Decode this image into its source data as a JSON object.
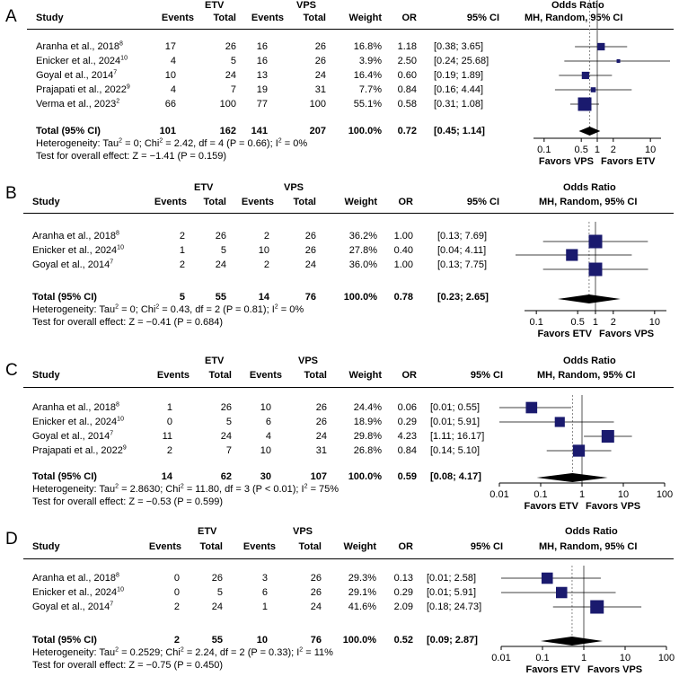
{
  "chart_data": [
    {
      "type": "forest",
      "panel": "A",
      "header": {
        "study": "Study",
        "group1": "ETV",
        "group2": "VPS",
        "events": "Events",
        "total": "Total",
        "weight": "Weight",
        "or": "OR",
        "ci": "95% CI",
        "or_title": "Odds Ratio",
        "method": "MH, Random, 95% CI"
      },
      "studies": [
        {
          "name": "Aranha et al., 2018",
          "ref": "8",
          "e1": "17",
          "n1": "26",
          "e2": "16",
          "n2": "26",
          "weight": "16.8%",
          "or_text": "1.18",
          "ci_text": "[0.38; 3.65]",
          "or": 1.18,
          "lo": 0.38,
          "hi": 3.65,
          "w": 16.8
        },
        {
          "name": "Enicker et al., 2024",
          "ref": "10",
          "e1": "4",
          "n1": "5",
          "e2": "16",
          "n2": "26",
          "weight": "3.9%",
          "or_text": "2.50",
          "ci_text": "[0.24; 25.68]",
          "or": 2.5,
          "lo": 0.24,
          "hi": 25.68,
          "w": 3.9
        },
        {
          "name": "Goyal et al., 2014",
          "ref": "7",
          "e1": "10",
          "n1": "24",
          "e2": "13",
          "n2": "24",
          "weight": "16.4%",
          "or_text": "0.60",
          "ci_text": "[0.19; 1.89]",
          "or": 0.6,
          "lo": 0.19,
          "hi": 1.89,
          "w": 16.4
        },
        {
          "name": "Prajapati et al., 2022",
          "ref": "9",
          "e1": "4",
          "n1": "7",
          "e2": "19",
          "n2": "31",
          "weight": "7.7%",
          "or_text": "0.84",
          "ci_text": "[0.16; 4.44]",
          "or": 0.84,
          "lo": 0.16,
          "hi": 4.44,
          "w": 7.7
        },
        {
          "name": "Verma et al., 2023",
          "ref": "2",
          "e1": "66",
          "n1": "100",
          "e2": "77",
          "n2": "100",
          "weight": "55.1%",
          "or_text": "0.58",
          "ci_text": "[0.31; 1.08]",
          "or": 0.58,
          "lo": 0.31,
          "hi": 1.08,
          "w": 55.1
        }
      ],
      "total": {
        "label": "Total (95% CI)",
        "e1": "101",
        "n1": "162",
        "e2": "141",
        "n2": "207",
        "weight": "100.0%",
        "or_text": "0.72",
        "ci_text": "[0.45; 1.14]",
        "or": 0.72,
        "lo": 0.45,
        "hi": 1.14
      },
      "heterogeneity": {
        "pre": "Heterogeneity: Tau",
        "tau2": "= 0; Chi",
        "chi2": "= 2.42, df = 4 (P = 0.66); I",
        "i2": "= 0%"
      },
      "overall_effect": "Test for overall effect: Z = −1.41 (P = 0.159)",
      "axis": {
        "ticks": [
          0.1,
          0.5,
          1,
          2,
          10
        ],
        "tick_labels": [
          "0.1",
          "0.5",
          "1",
          "2",
          "10"
        ],
        "xlim": [
          0.0631,
          15.85
        ],
        "scale": "log"
      },
      "favors": {
        "left": "Favors VPS",
        "right": "Favors ETV"
      }
    },
    {
      "type": "forest",
      "panel": "B",
      "header": {
        "study": "Study",
        "group1": "ETV",
        "group2": "VPS",
        "events": "Events",
        "total": "Total",
        "weight": "Weight",
        "or": "OR",
        "ci": "95% CI",
        "or_title": "Odds Ratio",
        "method": "MH, Random, 95% CI"
      },
      "studies": [
        {
          "name": "Aranha et al., 2018",
          "ref": "8",
          "e1": "2",
          "n1": "26",
          "e2": "2",
          "n2": "26",
          "weight": "36.2%",
          "or_text": "1.00",
          "ci_text": "[0.13; 7.69]",
          "or": 1.0,
          "lo": 0.13,
          "hi": 7.69,
          "w": 36.2
        },
        {
          "name": "Enicker et al., 2024",
          "ref": "10",
          "e1": "1",
          "n1": "5",
          "e2": "10",
          "n2": "26",
          "weight": "27.8%",
          "or_text": "0.40",
          "ci_text": "[0.04; 4.11]",
          "or": 0.4,
          "lo": 0.04,
          "hi": 4.11,
          "w": 27.8
        },
        {
          "name": "Goyal et al., 2014",
          "ref": "7",
          "e1": "2",
          "n1": "24",
          "e2": "2",
          "n2": "24",
          "weight": "36.0%",
          "or_text": "1.00",
          "ci_text": "[0.13; 7.75]",
          "or": 1.0,
          "lo": 0.13,
          "hi": 7.75,
          "w": 36.0
        }
      ],
      "total": {
        "label": "Total (95% CI)",
        "e1": "5",
        "n1": "55",
        "e2": "14",
        "n2": "76",
        "weight": "100.0%",
        "or_text": "0.78",
        "ci_text": "[0.23; 2.65]",
        "or": 0.78,
        "lo": 0.23,
        "hi": 2.65
      },
      "heterogeneity": {
        "pre": "Heterogeneity: Tau",
        "tau2": "= 0; Chi",
        "chi2": "= 0.43, df = 2 (P = 0.81); I",
        "i2": "= 0%"
      },
      "overall_effect": "Test for overall effect: Z = −0.41 (P = 0.684)",
      "axis": {
        "ticks": [
          0.1,
          0.5,
          1,
          2,
          10
        ],
        "tick_labels": [
          "0.1",
          "0.5",
          "1",
          "2",
          "10"
        ],
        "xlim": [
          0.0631,
          15.85
        ],
        "scale": "log"
      },
      "favors": {
        "left": "Favors ETV",
        "right": "Favors VPS"
      }
    },
    {
      "type": "forest",
      "panel": "C",
      "header": {
        "study": "Study",
        "group1": "ETV",
        "group2": "VPS",
        "events": "Events",
        "total": "Total",
        "weight": "Weight",
        "or": "OR",
        "ci": "95% CI",
        "or_title": "Odds Ratio",
        "method": "MH, Random, 95% CI"
      },
      "studies": [
        {
          "name": "Aranha et al., 2018",
          "ref": "8",
          "e1": "1",
          "n1": "26",
          "e2": "10",
          "n2": "26",
          "weight": "24.4%",
          "or_text": "0.06",
          "ci_text": "[0.01; 0.55]",
          "or": 0.06,
          "lo": 0.01,
          "hi": 0.55,
          "w": 24.4
        },
        {
          "name": "Enicker et al., 2024",
          "ref": "10",
          "e1": "0",
          "n1": "5",
          "e2": "6",
          "n2": "26",
          "weight": "18.9%",
          "or_text": "0.29",
          "ci_text": "[0.01; 5.91]",
          "or": 0.29,
          "lo": 0.01,
          "hi": 5.91,
          "w": 18.9
        },
        {
          "name": "Goyal et al., 2014",
          "ref": "7",
          "e1": "11",
          "n1": "24",
          "e2": "4",
          "n2": "24",
          "weight": "29.8%",
          "or_text": "4.23",
          "ci_text": "[1.11; 16.17]",
          "or": 4.23,
          "lo": 1.11,
          "hi": 16.17,
          "w": 29.8
        },
        {
          "name": "Prajapati et al., 2022",
          "ref": "9",
          "e1": "2",
          "n1": "7",
          "e2": "10",
          "n2": "31",
          "weight": "26.8%",
          "or_text": "0.84",
          "ci_text": "[0.14; 5.10]",
          "or": 0.84,
          "lo": 0.14,
          "hi": 5.1,
          "w": 26.8
        }
      ],
      "total": {
        "label": "Total (95% CI)",
        "e1": "14",
        "n1": "62",
        "e2": "30",
        "n2": "107",
        "weight": "100.0%",
        "or_text": "0.59",
        "ci_text": "[0.08; 4.17]",
        "or": 0.59,
        "lo": 0.08,
        "hi": 4.17
      },
      "heterogeneity": {
        "pre": "Heterogeneity: Tau",
        "tau2": "= 2.8630; Chi",
        "chi2": "= 11.80, df = 3 (P < 0.01); I",
        "i2": "= 75%"
      },
      "overall_effect": "Test for overall effect: Z = −0.53 (P = 0.599)",
      "axis": {
        "ticks": [
          0.01,
          0.1,
          1,
          10,
          100
        ],
        "tick_labels": [
          "0.01",
          "0.1",
          "1",
          "10",
          "100"
        ],
        "xlim": [
          0.01,
          100
        ],
        "scale": "log"
      },
      "favors": {
        "left": "Favors ETV",
        "right": "Favors VPS"
      }
    },
    {
      "type": "forest",
      "panel": "D",
      "header": {
        "study": "Study",
        "group1": "ETV",
        "group2": "VPS",
        "events": "Events",
        "total": "Total",
        "weight": "Weight",
        "or": "OR",
        "ci": "95% CI",
        "or_title": "Odds Ratio",
        "method": "MH, Random, 95% CI"
      },
      "studies": [
        {
          "name": "Aranha et al., 2018",
          "ref": "8",
          "e1": "0",
          "n1": "26",
          "e2": "3",
          "n2": "26",
          "weight": "29.3%",
          "or_text": "0.13",
          "ci_text": "[0.01; 2.58]",
          "or": 0.13,
          "lo": 0.01,
          "hi": 2.58,
          "w": 29.3
        },
        {
          "name": "Enicker et al., 2024",
          "ref": "10",
          "e1": "0",
          "n1": "5",
          "e2": "6",
          "n2": "26",
          "weight": "29.1%",
          "or_text": "0.29",
          "ci_text": "[0.01; 5.91]",
          "or": 0.29,
          "lo": 0.01,
          "hi": 5.91,
          "w": 29.1
        },
        {
          "name": "Goyal et al., 2014",
          "ref": "7",
          "e1": "2",
          "n1": "24",
          "e2": "1",
          "n2": "24",
          "weight": "41.6%",
          "or_text": "2.09",
          "ci_text": "[0.18; 24.73]",
          "or": 2.09,
          "lo": 0.18,
          "hi": 24.73,
          "w": 41.6
        }
      ],
      "total": {
        "label": "Total (95% CI)",
        "e1": "2",
        "n1": "55",
        "e2": "10",
        "n2": "76",
        "weight": "100.0%",
        "or_text": "0.52",
        "ci_text": "[0.09; 2.87]",
        "or": 0.52,
        "lo": 0.09,
        "hi": 2.87
      },
      "heterogeneity": {
        "pre": "Heterogeneity: Tau",
        "tau2": "= 0.2529; Chi",
        "chi2": "= 2.24, df = 2 (P = 0.33); I",
        "i2": "= 11%"
      },
      "overall_effect": "Test for overall effect: Z = −0.75 (P = 0.450)",
      "axis": {
        "ticks": [
          0.01,
          0.1,
          1,
          10,
          100
        ],
        "tick_labels": [
          "0.01",
          "0.1",
          "1",
          "10",
          "100"
        ],
        "xlim": [
          0.01,
          100
        ],
        "scale": "log"
      },
      "favors": {
        "left": "Favors ETV",
        "right": "Favors VPS"
      }
    }
  ]
}
